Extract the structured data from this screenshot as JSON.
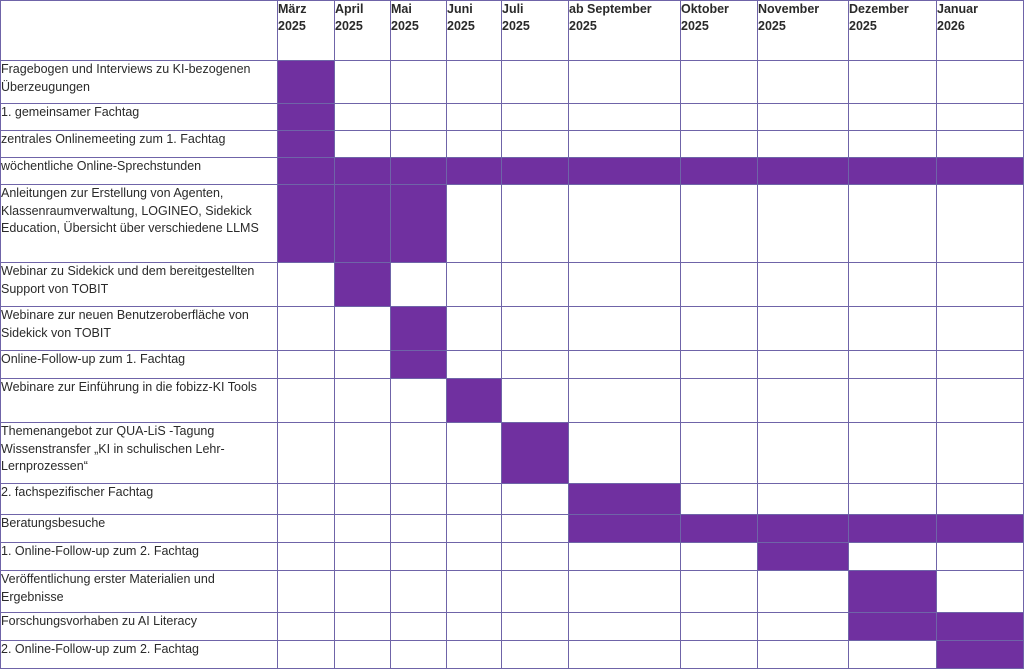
{
  "months": [
    {
      "line1": "März",
      "line2": "2025"
    },
    {
      "line1": "April",
      "line2": "2025"
    },
    {
      "line1": "Mai",
      "line2": "2025"
    },
    {
      "line1": "Juni",
      "line2": "2025"
    },
    {
      "line1": "Juli",
      "line2": "2025"
    },
    {
      "line1": "ab September",
      "line2": "2025"
    },
    {
      "line1": "Oktober",
      "line2": "2025"
    },
    {
      "line1": "November",
      "line2": "2025"
    },
    {
      "line1": "Dezember",
      "line2": "2025"
    },
    {
      "line1": "Januar",
      "line2": "2026"
    }
  ],
  "colors": {
    "bar": "#7030a0",
    "grid": "#6f64a8"
  },
  "tasks": [
    {
      "label": "Fragebogen und Interviews zu KI-bezogenen Überzeugungen",
      "active": [
        0
      ]
    },
    {
      "label": "1. gemeinsamer Fachtag",
      "active": [
        0
      ]
    },
    {
      "label": "zentrales Onlinemeeting zum 1. Fachtag",
      "active": [
        0
      ]
    },
    {
      "label": "wöchentliche Online-Sprechstunden",
      "active": [
        0,
        1,
        2,
        3,
        4,
        5,
        6,
        7,
        8,
        9
      ]
    },
    {
      "label": "Anleitungen zur Erstellung von Agenten, Klassenraumverwaltung, LOGINEO, Sidekick Education, Übersicht über verschiedene LLMS",
      "active": [
        0,
        1,
        2
      ]
    },
    {
      "label": "Webinar zu Sidekick und dem bereitgestellten Support von TOBIT",
      "active": [
        1
      ]
    },
    {
      "label": "Webinare zur neuen Benutzeroberfläche von Sidekick von TOBIT",
      "active": [
        2
      ]
    },
    {
      "label": "Online-Follow-up zum 1. Fachtag",
      "active": [
        2
      ]
    },
    {
      "label": "Webinare zur Einführung in die fobizz-KI Tools",
      "active": [
        3
      ]
    },
    {
      "label": "Themenangebot zur QUA-LiS -Tagung Wissenstransfer „KI in schulischen Lehr-Lernprozessen“",
      "active": [
        4
      ]
    },
    {
      "label": "2. fachspezifischer Fachtag",
      "active": [
        5
      ]
    },
    {
      "label": "Beratungsbesuche",
      "active": [
        5,
        6,
        7,
        8,
        9
      ]
    },
    {
      "label": "1. Online-Follow-up zum 2. Fachtag",
      "active": [
        7
      ]
    },
    {
      "label": "Veröffentlichung erster Materialien und Ergebnisse",
      "active": [
        8
      ]
    },
    {
      "label": "Forschungsvorhaben zu AI Literacy",
      "active": [
        8,
        9
      ]
    },
    {
      "label": "2. Online-Follow-up zum 2. Fachtag",
      "active": [
        9
      ]
    }
  ]
}
